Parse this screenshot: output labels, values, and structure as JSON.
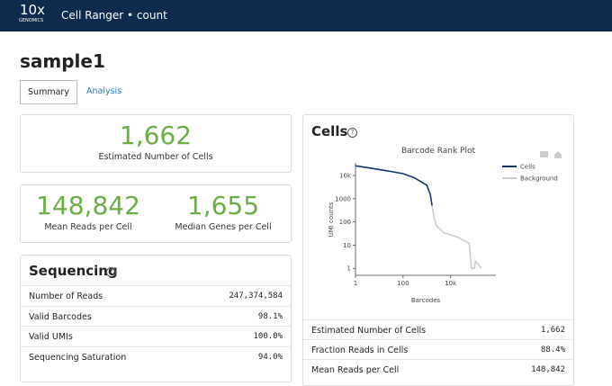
{
  "header": {
    "logo": "10x",
    "logo_sub": "GENOMICS",
    "title": "Cell Ranger • count"
  },
  "page_title": "sample1",
  "tabs": [
    "Summary",
    "Analysis"
  ],
  "hero": [
    {
      "value": "1,662",
      "label": "Estimated Number of Cells"
    },
    {
      "value": "148,842",
      "label": "Mean Reads per Cell"
    },
    {
      "value": "1,655",
      "label": "Median Genes per Cell"
    }
  ],
  "sequencing": {
    "title": "Sequencing",
    "rows": [
      [
        "Number of Reads",
        "247,374,584"
      ],
      [
        "Valid Barcodes",
        "98.1%"
      ],
      [
        "Valid UMIs",
        "100.0%"
      ],
      [
        "Sequencing Saturation",
        "94.0%"
      ]
    ]
  },
  "cells": {
    "title": "Cells",
    "rows": [
      [
        "Estimated Number of Cells",
        "1,662"
      ],
      [
        "Fraction Reads in Cells",
        "88.4%"
      ],
      [
        "Mean Reads per Cell",
        "148,842"
      ]
    ]
  },
  "chart_data": {
    "type": "line",
    "title": "Barcode Rank Plot",
    "x_label": "Barcodes",
    "y_label": "UMI counts",
    "log_x": true,
    "log_y": true,
    "legend": "right",
    "xlim": [
      1,
      800000
    ],
    "ylim": [
      0.5,
      35000
    ],
    "xticks": [
      1,
      100,
      {
        "value": 10000,
        "label": "10k"
      }
    ],
    "yticks": [
      1,
      10,
      100,
      1000,
      {
        "value": 10000,
        "label": "10k"
      }
    ],
    "series": [
      {
        "name": "Cells",
        "color": "#0f3564",
        "x": [
          1,
          3,
          10,
          30,
          100,
          300,
          1000,
          1400,
          1662
        ],
        "values": [
          26000,
          22000,
          18000,
          15000,
          12000,
          8000,
          3800,
          1500,
          500
        ]
      },
      {
        "name": "Background",
        "color": "#cccccc",
        "x": [
          1662,
          2000,
          2500,
          5000,
          20000,
          60000,
          65000,
          70000,
          75000,
          100000,
          110000,
          200000
        ],
        "values": [
          500,
          150,
          70,
          35,
          22,
          12,
          5,
          2,
          1,
          1,
          2,
          1
        ]
      }
    ]
  }
}
